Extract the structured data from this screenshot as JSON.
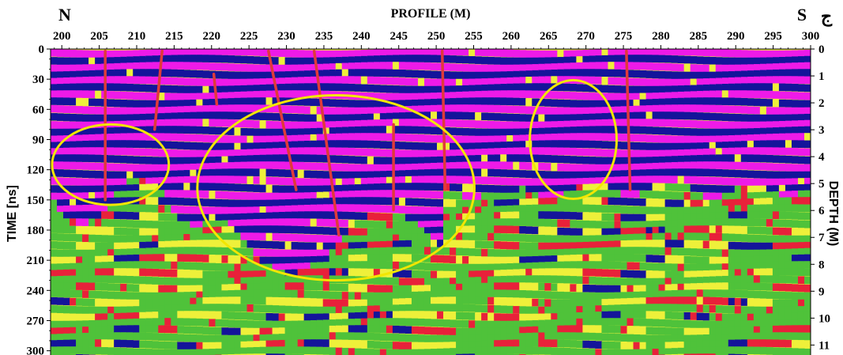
{
  "chart_data": {
    "type": "heatmap",
    "title": "PROFILE (M)",
    "xlabel": "PROFILE (M)",
    "ylabel": "TIME [ns]",
    "y2label": "DEPTH (M)",
    "xlim": [
      198.5,
      300
    ],
    "ylim": [
      0,
      305
    ],
    "y2lim": [
      0,
      11.4
    ],
    "x_ticks": [
      "200",
      "205",
      "210",
      "215",
      "220",
      "225",
      "230",
      "235",
      "240",
      "245",
      "250",
      "255",
      "260",
      "265",
      "270",
      "275",
      "280",
      "285",
      "290",
      "295",
      "300"
    ],
    "y_ticks": [
      "0",
      "30",
      "60",
      "90",
      "120",
      "150",
      "180",
      "210",
      "240",
      "270",
      "300"
    ],
    "y2_ticks": [
      "0",
      "1",
      "2",
      "3",
      "4",
      "5",
      "6",
      "7",
      "8",
      "9",
      "10",
      "11"
    ],
    "corner_labels": {
      "left": "N",
      "right": "S",
      "far_right": "ج"
    },
    "colors": {
      "magenta": "#ee1ae8",
      "blue": "#14149a",
      "green": "#4fc23a",
      "yellow": "#eef03a",
      "red": "#e8213a",
      "fault_line": "#e03a3a",
      "annotation": "#f2e600"
    },
    "fault_lines": [
      {
        "x1": 205.8,
        "y1": 2,
        "x2": 205.8,
        "y2": 150
      },
      {
        "x1": 213.4,
        "y1": 2,
        "x2": 212.4,
        "y2": 80
      },
      {
        "x1": 220.3,
        "y1": 25,
        "x2": 220.7,
        "y2": 55
      },
      {
        "x1": 227.6,
        "y1": 2,
        "x2": 231.3,
        "y2": 140
      },
      {
        "x1": 233.7,
        "y1": 2,
        "x2": 237.0,
        "y2": 185
      },
      {
        "x1": 244.3,
        "y1": 75,
        "x2": 244.3,
        "y2": 160
      },
      {
        "x1": 250.8,
        "y1": 2,
        "x2": 251.2,
        "y2": 140
      },
      {
        "x1": 275.4,
        "y1": 2,
        "x2": 275.9,
        "y2": 140
      }
    ],
    "annotation_ellipses": [
      {
        "cx": 206.5,
        "cy": 115,
        "rx": 7.8,
        "ry": 40
      },
      {
        "cx": 236.6,
        "cy": 138,
        "rx": 18.5,
        "ry": 92
      },
      {
        "cx": 268.3,
        "cy": 90,
        "rx": 5.8,
        "ry": 59
      }
    ]
  }
}
